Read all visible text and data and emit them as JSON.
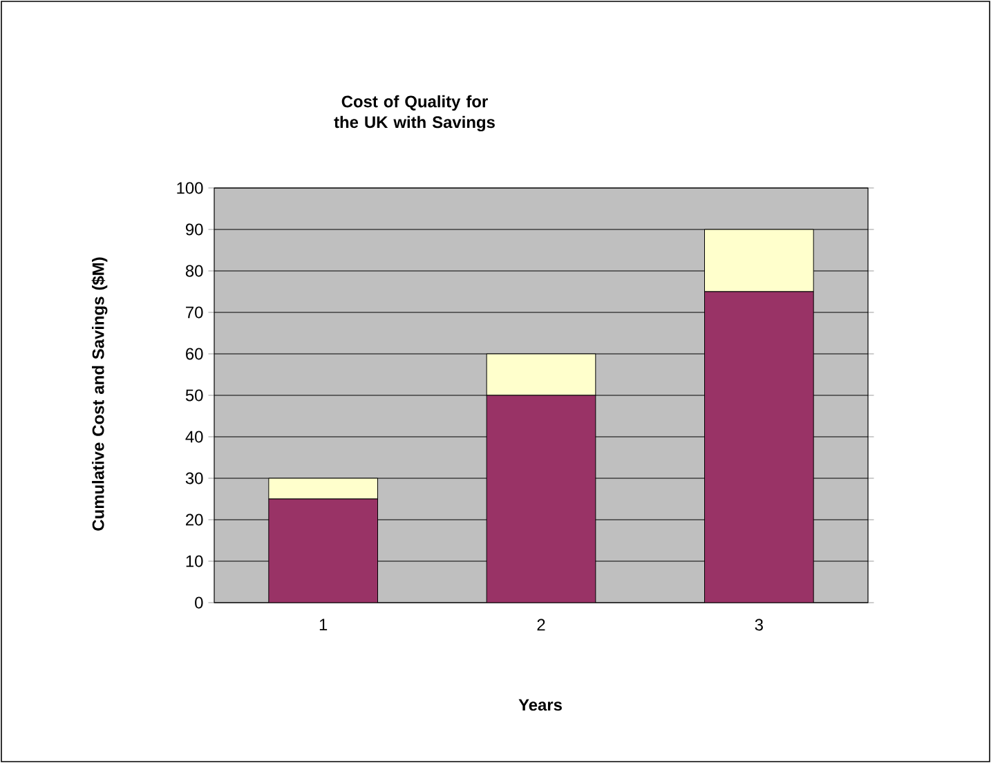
{
  "chart_data": {
    "type": "bar",
    "title": "Cost of Quality for the UK with Savings",
    "xlabel": "Years",
    "ylabel": "Cumulative Cost and Savings ($M)",
    "categories": [
      "1",
      "2",
      "3"
    ],
    "series": [
      {
        "color": "#993366",
        "values": [
          25,
          50,
          75
        ]
      },
      {
        "color": "#ffffcc",
        "values": [
          5,
          10,
          15
        ]
      }
    ],
    "stacked": true,
    "ylim": [
      0,
      100
    ],
    "yticks": [
      0,
      10,
      20,
      30,
      40,
      50,
      60,
      70,
      80,
      90,
      100
    ],
    "grid": "y"
  }
}
